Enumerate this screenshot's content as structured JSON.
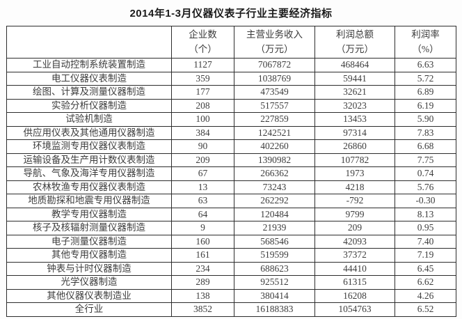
{
  "title": "2014年1-3月仪器仪表子行业主要经济指标",
  "chart_data": {
    "type": "table",
    "title": "2014年1-3月仪器仪表子行业主要经济指标",
    "corner_header": "",
    "column_headers": [
      {
        "line1": "企业数",
        "line2": "（个）"
      },
      {
        "line1": "主营业务收入",
        "line2": "（万元）"
      },
      {
        "line1": "利润总额",
        "line2": "（万元）"
      },
      {
        "line1": "利润率",
        "line2": "（%）"
      }
    ],
    "column_fields": [
      "industry",
      "enterprise_count",
      "main_revenue_wan_yuan",
      "total_profit_wan_yuan",
      "profit_rate_pct"
    ],
    "rows": [
      [
        "工业自动控制系统装置制造",
        "1127",
        "7067872",
        "468464",
        "6.63"
      ],
      [
        "电工仪器仪表制造",
        "359",
        "1038769",
        "59441",
        "5.72"
      ],
      [
        "绘图、计算及测量仪器制造",
        "177",
        "473549",
        "32621",
        "6.89"
      ],
      [
        "实验分析仪器制造",
        "208",
        "517557",
        "32023",
        "6.19"
      ],
      [
        "试验机制造",
        "100",
        "227859",
        "13453",
        "5.90"
      ],
      [
        "供应用仪表及其他通用仪器制造",
        "384",
        "1242521",
        "97314",
        "7.83"
      ],
      [
        "环境监测专用仪器仪表制造",
        "90",
        "402260",
        "26860",
        "6.68"
      ],
      [
        "运输设备及生产用计数仪表制造",
        "209",
        "1390982",
        "107782",
        "7.75"
      ],
      [
        "导航、气象及海洋专用仪器制造",
        "67",
        "266362",
        "1973",
        "0.74"
      ],
      [
        "农林牧渔专用仪器仪表制造",
        "13",
        "73243",
        "4218",
        "5.76"
      ],
      [
        "地质勘探和地震专用仪器制造",
        "63",
        "262292",
        "-792",
        "-0.30"
      ],
      [
        "教学专用仪器制造",
        "64",
        "120484",
        "9799",
        "8.13"
      ],
      [
        "核子及核辐射测量仪器制造",
        "9",
        "21939",
        "209",
        "0.95"
      ],
      [
        "电子测量仪器制造",
        "160",
        "568546",
        "42093",
        "7.40"
      ],
      [
        "其他专用仪器制造",
        "161",
        "519599",
        "37372",
        "7.19"
      ],
      [
        "钟表与计时仪器制造",
        "234",
        "688623",
        "44410",
        "6.45"
      ],
      [
        "光学仪器制造",
        "289",
        "925512",
        "61315",
        "6.62"
      ],
      [
        "其他仪器仪表制造业",
        "138",
        "380414",
        "16208",
        "4.26"
      ],
      [
        "全行业",
        "3852",
        "16188383",
        "1054763",
        "6.52"
      ]
    ]
  }
}
